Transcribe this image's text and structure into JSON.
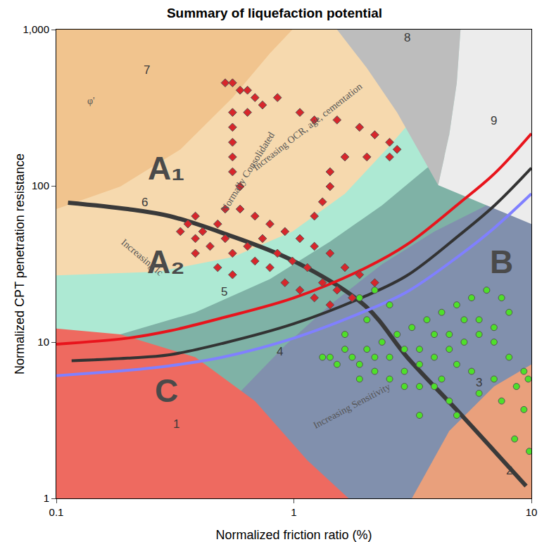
{
  "chart_data": {
    "type": "scatter",
    "title": "Summary of liquefaction potential",
    "x_label": "Normalized friction ratio (%)",
    "y_label": "Normalized CPT penetration resistance",
    "log": true,
    "grid": false,
    "xlim": [
      0.1,
      10
    ],
    "ylim": [
      1,
      1000
    ],
    "xticks": [
      0.1,
      1,
      10
    ],
    "yticks": [
      1,
      10,
      100,
      {
        "value": 1000,
        "label": "1,000"
      }
    ],
    "zones": [
      {
        "label": "3",
        "color": "#8190ad",
        "x": [
          0.1,
          10,
          10,
          0.1
        ],
        "y": [
          1,
          1,
          1000,
          1000
        ],
        "label_x": 6.0,
        "label_y": 5.5
      },
      {
        "label": "4",
        "color": "#7fb2a6",
        "x": [
          0.1,
          0.594,
          0.917,
          1.42,
          2.35,
          3.9,
          6.48,
          6.48,
          0.1
        ],
        "y": [
          4.2,
          4.8,
          9.5,
          17.3,
          31.5,
          51,
          75,
          1000,
          1000
        ],
        "label_x": 0.87,
        "label_y": 8.7
      },
      {
        "label": "5",
        "color": "#ade9d3",
        "x": [
          0.1,
          0.186,
          0.385,
          0.793,
          1.42,
          2.35,
          3.63,
          4.51,
          4.51,
          0.1
        ],
        "y": [
          11.2,
          11.2,
          15.5,
          25.3,
          44,
          75,
          130,
          162,
          1000,
          1000
        ],
        "label_x": 0.51,
        "label_y": 21
      },
      {
        "label": "6",
        "color": "#f6d9ae",
        "x": [
          0.1,
          0.268,
          0.552,
          0.986,
          1.64,
          2.53,
          3.14,
          3.14,
          0.1
        ],
        "y": [
          26.7,
          28.2,
          35,
          51,
          89,
          180,
          264,
          1000,
          1000
        ],
        "label_x": 0.235,
        "label_y": 78
      },
      {
        "label": "7",
        "color": "#f1c48e",
        "x": [
          0.1,
          0.186,
          0.333,
          0.552,
          0.793,
          0.986,
          0.1
        ],
        "y": [
          71,
          99,
          171,
          367,
          705,
          1000,
          1000
        ],
        "label_x": 0.24,
        "label_y": 550
      },
      {
        "label": "8",
        "color": "#bdbdbd",
        "x": [
          1.52,
          2.03,
          2.72,
          3.63,
          4.05,
          4.51,
          4.85,
          5.03
        ],
        "y": [
          1000,
          567,
          295,
          137,
          101,
          212,
          456,
          1000
        ],
        "label_x": 3.0,
        "label_y": 890
      },
      {
        "label": "9",
        "color": "#ececec",
        "x": [
          5.03,
          4.85,
          4.51,
          4.05,
          6.48,
          10,
          10
        ],
        "y": [
          1000,
          456,
          212,
          101,
          75,
          57,
          1000
        ],
        "label_x": 6.96,
        "label_y": 260
      },
      {
        "label": "1",
        "color": "#ee6a60",
        "x": [
          0.1,
          0.1,
          0.186,
          0.385,
          0.686,
          1.14,
          1.7
        ],
        "y": [
          1,
          12.2,
          11.2,
          8.0,
          4.2,
          1.75,
          1
        ],
        "label_x": 0.32,
        "label_y": 3.0
      },
      {
        "label": "2",
        "color": "#e9a07c",
        "x": [
          3.14,
          4.51,
          6.96,
          10,
          10
        ],
        "y": [
          1,
          2.7,
          5.2,
          7.2,
          1
        ],
        "label_x": 8.05,
        "label_y": 1.5
      }
    ],
    "series": [
      {
        "type": "line",
        "color": "#3a3a3a",
        "line_style": "bold",
        "x": [
          0.112,
          0.2,
          0.3,
          0.5,
          1,
          2,
          3,
          5,
          8,
          9.5
        ],
        "values": [
          78,
          71,
          64,
          50,
          33,
          17,
          8,
          3.5,
          1.6,
          1.2
        ]
      },
      {
        "type": "line",
        "color": "#e8141c",
        "line_style": "solid",
        "x": [
          0.1,
          0.2,
          0.3,
          0.5,
          1,
          2,
          3,
          5,
          7,
          10
        ],
        "values": [
          9.7,
          10.6,
          11.8,
          14.3,
          19.2,
          29.8,
          42.2,
          78,
          120,
          216
        ]
      },
      {
        "type": "line",
        "color": "#333333",
        "line_style": "solid",
        "x": [
          0.116,
          0.2,
          0.3,
          0.5,
          1,
          2,
          3,
          5,
          7,
          10
        ],
        "values": [
          7.6,
          7.9,
          8.3,
          9.8,
          13.1,
          19.7,
          26.7,
          48.7,
          75,
          130
        ]
      },
      {
        "type": "line",
        "color": "#8080ff",
        "line_style": "solid",
        "x": [
          0.1,
          0.2,
          0.3,
          0.5,
          1,
          2,
          3,
          5,
          7,
          10
        ],
        "values": [
          6.1,
          6.6,
          7.05,
          8.0,
          10.6,
          15.8,
          21,
          36,
          54,
          89
        ]
      },
      {
        "type": "scatter",
        "color": "#d7262b",
        "marker": "diamond",
        "x": [
          0.514,
          0.552,
          0.594,
          0.638,
          0.686,
          0.738,
          0.638,
          0.552,
          0.552,
          0.552,
          0.552,
          0.552,
          0.594,
          0.853,
          1.06,
          1.22,
          1.52,
          1.89,
          2.19,
          2.53,
          2.72,
          2.53,
          2.03,
          1.64,
          1.42,
          1.42,
          1.32,
          1.22,
          0.385,
          0.358,
          0.413,
          0.478,
          0.514,
          0.594,
          0.686,
          0.793,
          0.917,
          1.06,
          1.22,
          1.42,
          1.64,
          1.89,
          2.19,
          0.444,
          0.514,
          0.552,
          0.638,
          0.738,
          0.853,
          0.986,
          1.14,
          1.32,
          1.06,
          1.22,
          0.917,
          0.793,
          0.686,
          0.385,
          0.333,
          0.385,
          0.478,
          0.552,
          1.52,
          1.76,
          1.42
        ],
        "values": [
          456,
          456,
          409,
          409,
          367,
          329,
          295,
          295,
          237,
          190,
          153,
          123,
          99,
          367,
          295,
          264,
          264,
          237,
          212,
          190,
          171,
          153,
          153,
          153,
          123,
          99,
          79,
          64,
          64,
          57,
          51,
          57,
          71,
          71,
          64,
          57,
          51,
          46,
          41,
          37,
          30,
          27,
          24,
          41,
          46,
          37,
          41,
          46,
          37,
          33,
          30,
          24,
          21.5,
          19.2,
          24,
          30,
          33,
          46,
          51,
          37,
          30,
          27,
          21.5,
          19.2,
          17.3
        ]
      },
      {
        "type": "scatter",
        "color": "#4ee02a",
        "marker": "circle",
        "x": [
          1.89,
          2.19,
          2.53,
          2.03,
          1.64,
          1.42,
          1.32,
          1.52,
          1.76,
          2.03,
          2.35,
          2.72,
          3.14,
          3.63,
          4.19,
          4.85,
          5.6,
          6.48,
          7.49,
          8.05,
          6.96,
          6.02,
          5.21,
          4.51,
          3.9,
          3.38,
          2.92,
          2.53,
          2.19,
          1.89,
          2.53,
          3.38,
          4.51,
          6.02,
          6.96,
          8.05,
          9.3,
          9.7,
          8.65,
          6.96,
          5.6,
          4.85,
          4.19,
          3.38,
          4.51,
          6.02,
          7.49,
          9.3,
          3.38,
          4.85,
          8.5,
          9.8,
          3.9,
          2.92,
          5.21,
          3.9,
          2.92,
          2.19,
          1.64,
          1.89
        ],
        "values": [
          19.2,
          21.5,
          17.3,
          13.9,
          11.2,
          8.0,
          8.0,
          7.2,
          8.0,
          9.0,
          10,
          11.2,
          12.4,
          13.9,
          15.5,
          17.3,
          19.2,
          21.5,
          19.2,
          15.5,
          12.4,
          11.2,
          10,
          9.0,
          8.0,
          7.2,
          6.5,
          5.8,
          6.5,
          7.2,
          8.0,
          9.0,
          11.2,
          13.9,
          10,
          8.0,
          6.5,
          5.8,
          5.2,
          5.8,
          6.5,
          7.2,
          5.8,
          5.2,
          4.2,
          4.7,
          4.2,
          3.7,
          3.4,
          3.4,
          2.4,
          2.0,
          5.2,
          5.2,
          13.9,
          11.2,
          9.0,
          8.0,
          9.0,
          5.8
        ]
      }
    ],
    "region_labels": [
      {
        "text": "A₁",
        "x": 0.29,
        "y": 130
      },
      {
        "text": "A₂",
        "x": 0.29,
        "y": 32.5
      },
      {
        "text": "B",
        "x": 7.5,
        "y": 32.5
      },
      {
        "text": "C",
        "x": 0.29,
        "y": 4.9
      }
    ],
    "annotations": [
      {
        "text": "Increasing OCR, age, cementation",
        "x": 1.14,
        "y": 237
      },
      {
        "text": "Normally Consolidated",
        "x": 0.638,
        "y": 123
      },
      {
        "text": "Increasing Ic",
        "x": 0.23,
        "y": 35
      },
      {
        "text": "Increasing Sensitivity",
        "x": 1.76,
        "y": 3.9
      },
      {
        "text": "φ'",
        "x": 0.14,
        "y": 350
      }
    ]
  }
}
